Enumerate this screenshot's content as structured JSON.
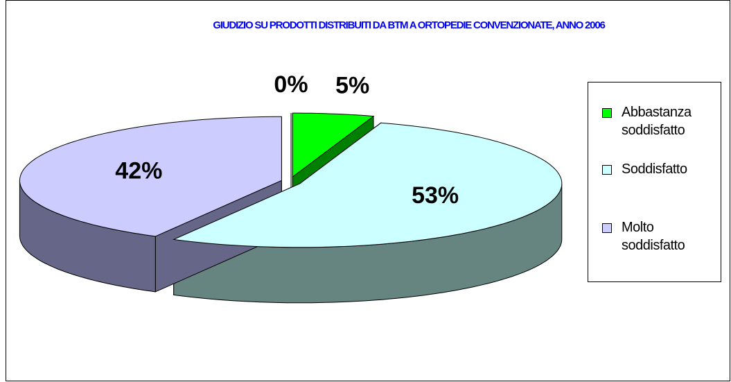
{
  "chart_data": {
    "type": "pie3d",
    "title": "GIUDIZIO SU PRODOTTI DISTRIBUITI DA BTM A ORTOPEDIE CONVENZIONATE, ANNO 2006",
    "categories": [
      null,
      "Abbastanza soddisfatto",
      "Soddisfatto",
      "Molto soddisfatto"
    ],
    "values": [
      0,
      5,
      53,
      42
    ],
    "value_labels": [
      "0%",
      "5%",
      "53%",
      "42%"
    ],
    "colors": [
      "#ffffff",
      "#00ff00",
      "#ccffff",
      "#ccccff"
    ],
    "side_colors": [
      "#ffffff",
      "#008000",
      "#668580",
      "#666688"
    ],
    "legend": "right"
  }
}
